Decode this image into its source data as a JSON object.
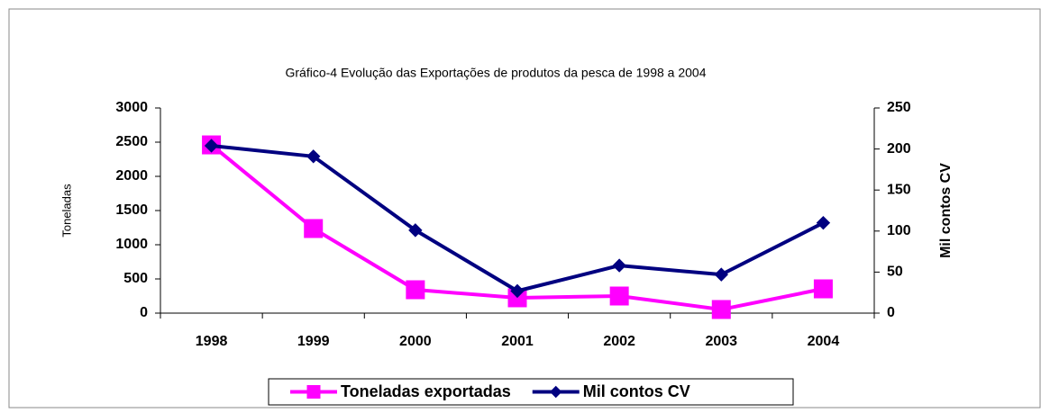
{
  "chart_data": {
    "type": "line",
    "title": "Gráfico-4 Evolução das Exportações de produtos da pesca de 1998 a 2004",
    "categories": [
      "1998",
      "1999",
      "2000",
      "2001",
      "2002",
      "2003",
      "2004"
    ],
    "y_label": "Toneladas",
    "y2_label": "Mil contos CV",
    "ylim": [
      0,
      3000
    ],
    "yticks": [
      0,
      500,
      1000,
      1500,
      2000,
      2500,
      3000
    ],
    "y2lim": [
      0,
      250
    ],
    "y2ticks": [
      0,
      50,
      100,
      150,
      200,
      250
    ],
    "grid": false,
    "legend": "bottom",
    "series": [
      {
        "name": "Toneladas exportadas",
        "color": "#ff00ff",
        "marker": "square",
        "values": [
          2460,
          1237,
          342,
          224,
          250,
          53,
          355
        ]
      },
      {
        "name": "Mil contos CV",
        "color": "#000080",
        "marker": "diamond",
        "axis": "y2",
        "values": [
          204,
          191,
          101,
          27,
          58,
          47,
          110
        ]
      }
    ]
  }
}
